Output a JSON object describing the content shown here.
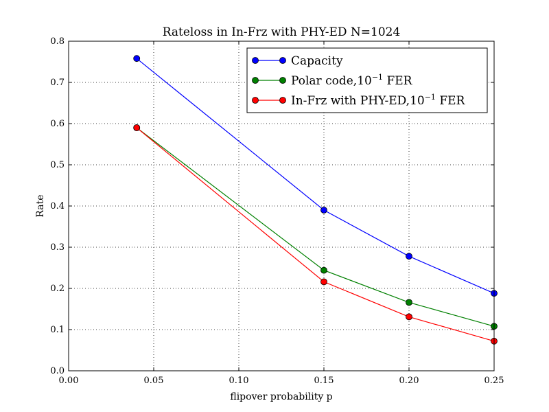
{
  "chart_data": {
    "type": "line",
    "title": "Rateloss in In-Frz with PHY-ED N=1024",
    "xlabel": "flipover probability p",
    "ylabel": "Rate",
    "xlim": [
      0.0,
      0.25
    ],
    "ylim": [
      0.0,
      0.8
    ],
    "xticks": [
      0.0,
      0.05,
      0.1,
      0.15,
      0.2,
      0.25
    ],
    "xtick_labels": [
      "0.00",
      "0.05",
      "0.10",
      "0.15",
      "0.20",
      "0.25"
    ],
    "yticks": [
      0.0,
      0.1,
      0.2,
      0.3,
      0.4,
      0.5,
      0.6,
      0.7,
      0.8
    ],
    "ytick_labels": [
      "0.0",
      "0.1",
      "0.2",
      "0.3",
      "0.4",
      "0.5",
      "0.6",
      "0.7",
      "0.8"
    ],
    "grid": true,
    "legend_position": "top-right",
    "x": [
      0.04,
      0.15,
      0.2,
      0.25
    ],
    "series": [
      {
        "name": "Capacity",
        "legend_base": "Capacity",
        "legend_sup": "",
        "legend_suffix": "",
        "color": "#0000ff",
        "values": [
          0.758,
          0.39,
          0.278,
          0.188
        ]
      },
      {
        "name": "Polar code,10^-1 FER",
        "legend_base": "Polar code,10",
        "legend_sup": "−1",
        "legend_suffix": " FER",
        "color": "#008000",
        "values": [
          0.59,
          0.244,
          0.166,
          0.108
        ]
      },
      {
        "name": "In-Frz with PHY-ED,10^-1 FER",
        "legend_base": "In-Frz with PHY-ED,10",
        "legend_sup": "−1",
        "legend_suffix": " FER",
        "color": "#ff0000",
        "values": [
          0.59,
          0.216,
          0.131,
          0.072
        ]
      }
    ]
  }
}
